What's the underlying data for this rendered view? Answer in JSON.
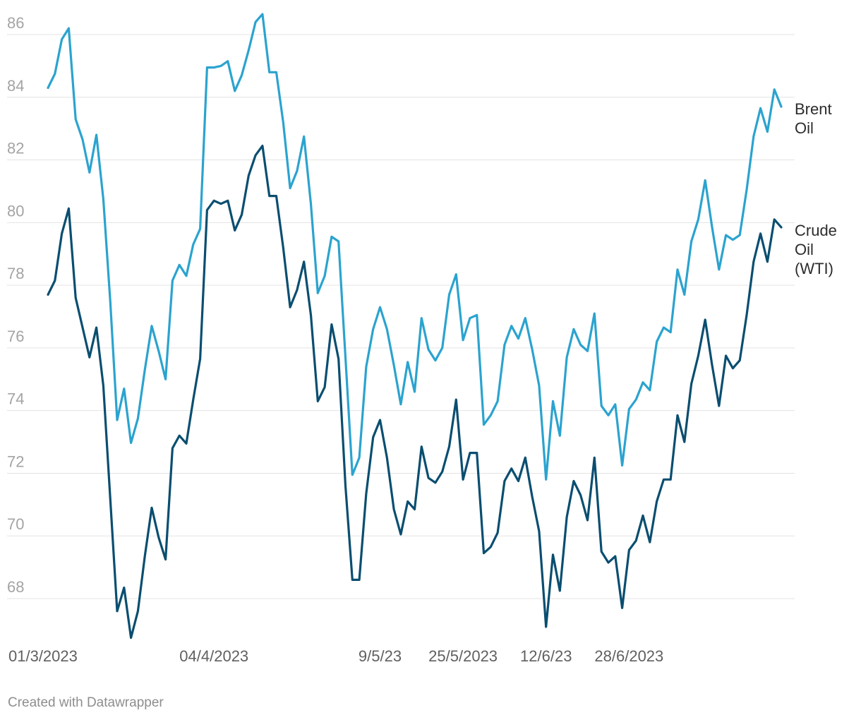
{
  "chart_data": {
    "type": "line",
    "title": "",
    "xlabel": "",
    "ylabel": "",
    "ylim": [
      66.5,
      86.8
    ],
    "y_ticks": [
      68,
      70,
      72,
      74,
      76,
      78,
      80,
      82,
      84,
      86
    ],
    "grid": "horizontal",
    "x_tick_labels": [
      {
        "index": 0,
        "label": "01/3/2023"
      },
      {
        "index": 24,
        "label": "04/4/2023"
      },
      {
        "index": 48,
        "label": "9/5/23"
      },
      {
        "index": 60,
        "label": "25/5/2023"
      },
      {
        "index": 72,
        "label": "12/6/23"
      },
      {
        "index": 84,
        "label": "28/6/2023"
      }
    ],
    "legend": "inline-right",
    "series": [
      {
        "name": "Brent Oil",
        "label_lines": [
          "Brent",
          "Oil"
        ],
        "color": "#2ba3cf",
        "values": [
          84.3,
          84.75,
          85.85,
          86.2,
          83.3,
          82.65,
          81.6,
          82.8,
          80.75,
          77.5,
          73.7,
          74.7,
          72.97,
          73.75,
          75.3,
          76.7,
          75.9,
          75.0,
          78.15,
          78.65,
          78.3,
          79.3,
          79.8,
          84.95,
          84.95,
          85.0,
          85.15,
          84.2,
          84.7,
          85.5,
          86.4,
          86.65,
          84.8,
          84.8,
          83.2,
          81.1,
          81.65,
          82.75,
          80.6,
          77.75,
          78.3,
          79.55,
          79.4,
          75.7,
          71.95,
          72.5,
          75.4,
          76.6,
          77.3,
          76.6,
          75.45,
          74.2,
          75.55,
          74.6,
          76.95,
          75.95,
          75.6,
          76.0,
          77.7,
          78.35,
          76.25,
          76.95,
          77.05,
          73.55,
          73.85,
          74.3,
          76.1,
          76.7,
          76.3,
          76.95,
          75.95,
          74.8,
          71.8,
          74.3,
          73.2,
          75.7,
          76.6,
          76.1,
          75.9,
          77.1,
          74.15,
          73.85,
          74.2,
          72.25,
          74.05,
          74.35,
          74.9,
          74.65,
          76.2,
          76.65,
          76.5,
          78.5,
          77.7,
          79.4,
          80.1,
          81.35,
          79.85,
          78.5,
          79.6,
          79.45,
          79.6,
          81.05,
          82.75,
          83.65,
          82.9,
          84.25,
          83.7
        ]
      },
      {
        "name": "Crude Oil (WTI)",
        "label_lines": [
          "Crude",
          "Oil",
          "(WTI)"
        ],
        "color": "#0a4e70",
        "values": [
          77.7,
          78.15,
          79.65,
          80.45,
          77.6,
          76.65,
          75.7,
          76.65,
          74.8,
          71.2,
          67.6,
          68.35,
          66.75,
          67.6,
          69.35,
          70.9,
          69.95,
          69.25,
          72.8,
          73.2,
          72.95,
          74.35,
          75.65,
          80.4,
          80.7,
          80.6,
          80.7,
          79.75,
          80.25,
          81.5,
          82.15,
          82.45,
          80.85,
          80.85,
          79.2,
          77.3,
          77.85,
          78.75,
          77.05,
          74.3,
          74.75,
          76.75,
          75.65,
          71.6,
          68.6,
          68.6,
          71.35,
          73.15,
          73.7,
          72.5,
          70.85,
          70.05,
          71.1,
          70.85,
          72.85,
          71.85,
          71.7,
          72.05,
          72.85,
          74.35,
          71.8,
          72.65,
          72.65,
          69.45,
          69.65,
          70.1,
          71.75,
          72.15,
          71.75,
          72.5,
          71.25,
          70.15,
          67.1,
          69.4,
          68.25,
          70.6,
          71.75,
          71.3,
          70.5,
          72.5,
          69.5,
          69.15,
          69.35,
          67.7,
          69.55,
          69.85,
          70.65,
          69.8,
          71.1,
          71.8,
          71.8,
          73.85,
          73.0,
          74.85,
          75.75,
          76.9,
          75.45,
          74.15,
          75.75,
          75.35,
          75.6,
          77.05,
          78.75,
          79.65,
          78.75,
          80.1,
          79.85
        ]
      }
    ]
  },
  "credit": "Created with Datawrapper"
}
